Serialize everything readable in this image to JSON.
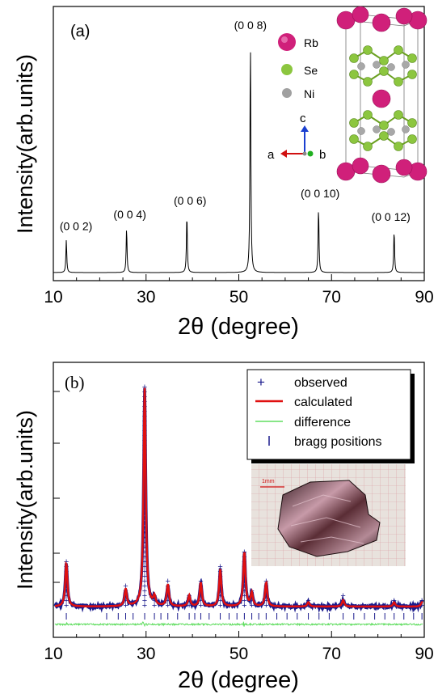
{
  "panel_a": {
    "label": "(a)",
    "ylabel": "Intensity(arb.units)",
    "xlabel": "2θ (degree)",
    "xticks": [
      "10",
      "30",
      "50",
      "70",
      "90"
    ],
    "peak_labels": [
      "(0 0 2)",
      "(0 0 4)",
      "(0 0 6)",
      "(0 0 8)",
      "(0 0 10)",
      "(0 0 12)"
    ],
    "legend": {
      "rb": "Rb",
      "se": "Se",
      "ni": "Ni"
    },
    "axes_glyph": {
      "a": "a",
      "b": "b",
      "c": "c"
    },
    "colors": {
      "rb": "#d0207a",
      "se": "#8cc63f",
      "ni": "#a0a0a0",
      "line": "#000000"
    }
  },
  "panel_b": {
    "label": "(b)",
    "ylabel": "Intensity(arb.units)",
    "xlabel": "2θ (degree)",
    "xticks": [
      "10",
      "30",
      "50",
      "70",
      "90"
    ],
    "legend": [
      "observed",
      "calculated",
      "difference",
      "bragg positions"
    ],
    "photo_scale": "1mm",
    "colors": {
      "observed": "#1a1a8c",
      "calculated": "#e01010",
      "difference": "#60dd60",
      "bragg": "#1a1a8c"
    }
  },
  "chart_data": [
    {
      "type": "line",
      "title": "(a)",
      "xlabel": "2θ (degree)",
      "ylabel": "Intensity(arb.units)",
      "xlim": [
        10,
        90
      ],
      "ylim": [
        0,
        1
      ],
      "grid": false,
      "peaks": [
        {
          "label": "(0 0 2)",
          "x": 12.8,
          "y": 0.14
        },
        {
          "label": "(0 0 4)",
          "x": 25.8,
          "y": 0.19
        },
        {
          "label": "(0 0 6)",
          "x": 38.8,
          "y": 0.25
        },
        {
          "label": "(0 0 8)",
          "x": 52.5,
          "y": 1.0
        },
        {
          "label": "(0 0 10)",
          "x": 67.2,
          "y": 0.28
        },
        {
          "label": "(0 0 12)",
          "x": 83.5,
          "y": 0.18
        }
      ]
    },
    {
      "type": "line",
      "title": "(b)",
      "xlabel": "2θ (degree)",
      "ylabel": "Intensity(arb.units)",
      "xlim": [
        10,
        90
      ],
      "ylim": [
        0,
        1
      ],
      "grid": false,
      "legend_placement": "top-right",
      "series": [
        {
          "name": "observed"
        },
        {
          "name": "calculated"
        },
        {
          "name": "difference"
        },
        {
          "name": "bragg positions"
        }
      ],
      "peaks": [
        {
          "x": 12.8,
          "y": 0.2
        },
        {
          "x": 25.6,
          "y": 0.08
        },
        {
          "x": 29.7,
          "y": 1.0
        },
        {
          "x": 31.8,
          "y": 0.04
        },
        {
          "x": 34.7,
          "y": 0.1
        },
        {
          "x": 39.3,
          "y": 0.05
        },
        {
          "x": 41.8,
          "y": 0.11
        },
        {
          "x": 46.0,
          "y": 0.17
        },
        {
          "x": 51.2,
          "y": 0.25
        },
        {
          "x": 52.8,
          "y": 0.06
        },
        {
          "x": 55.9,
          "y": 0.11
        },
        {
          "x": 65.0,
          "y": 0.02
        },
        {
          "x": 72.5,
          "y": 0.03
        },
        {
          "x": 83.5,
          "y": 0.02
        },
        {
          "x": 89.5,
          "y": 0.02
        }
      ],
      "bragg_positions": [
        12.8,
        21.5,
        24.0,
        25.6,
        27.2,
        29.7,
        31.8,
        33.2,
        34.7,
        36.8,
        39.3,
        40.5,
        41.8,
        43.6,
        46.0,
        47.9,
        49.6,
        51.2,
        52.8,
        54.3,
        55.9,
        58.2,
        60.4,
        62.6,
        65.0,
        67.3,
        69.5,
        72.5,
        74.8,
        77.1,
        79.3,
        81.5,
        83.5,
        85.6,
        87.7,
        89.5
      ]
    }
  ]
}
